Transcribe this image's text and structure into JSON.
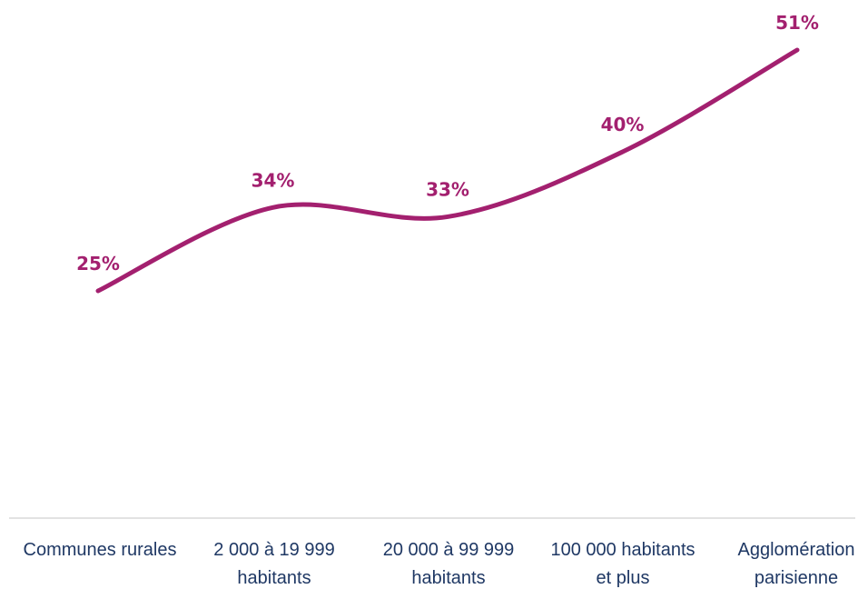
{
  "chart_data": {
    "type": "line",
    "categories": [
      "Communes rurales",
      "2 000 à 19 999 habitants",
      "20 000 à 99 999 habitants",
      "100 000 habitants et plus",
      "Agglomération parisienne"
    ],
    "category_lines": [
      [
        "Communes rurales"
      ],
      [
        "2 000 à 19 999",
        "habitants"
      ],
      [
        "20 000 à 99 999",
        "habitants"
      ],
      [
        "100 000 habitants",
        "et plus"
      ],
      [
        "Agglomération",
        "parisienne"
      ]
    ],
    "values": [
      25,
      34,
      33,
      40,
      51
    ],
    "value_labels": [
      "25%",
      "34%",
      "33%",
      "40%",
      "51%"
    ],
    "unit": "%",
    "smooth": true,
    "legend": "none",
    "grid": false,
    "colors": {
      "line": "#A3206F",
      "data_label": "#A3206F",
      "axis_line": "#D9D9D9",
      "tick_label": "#1F3864"
    }
  }
}
